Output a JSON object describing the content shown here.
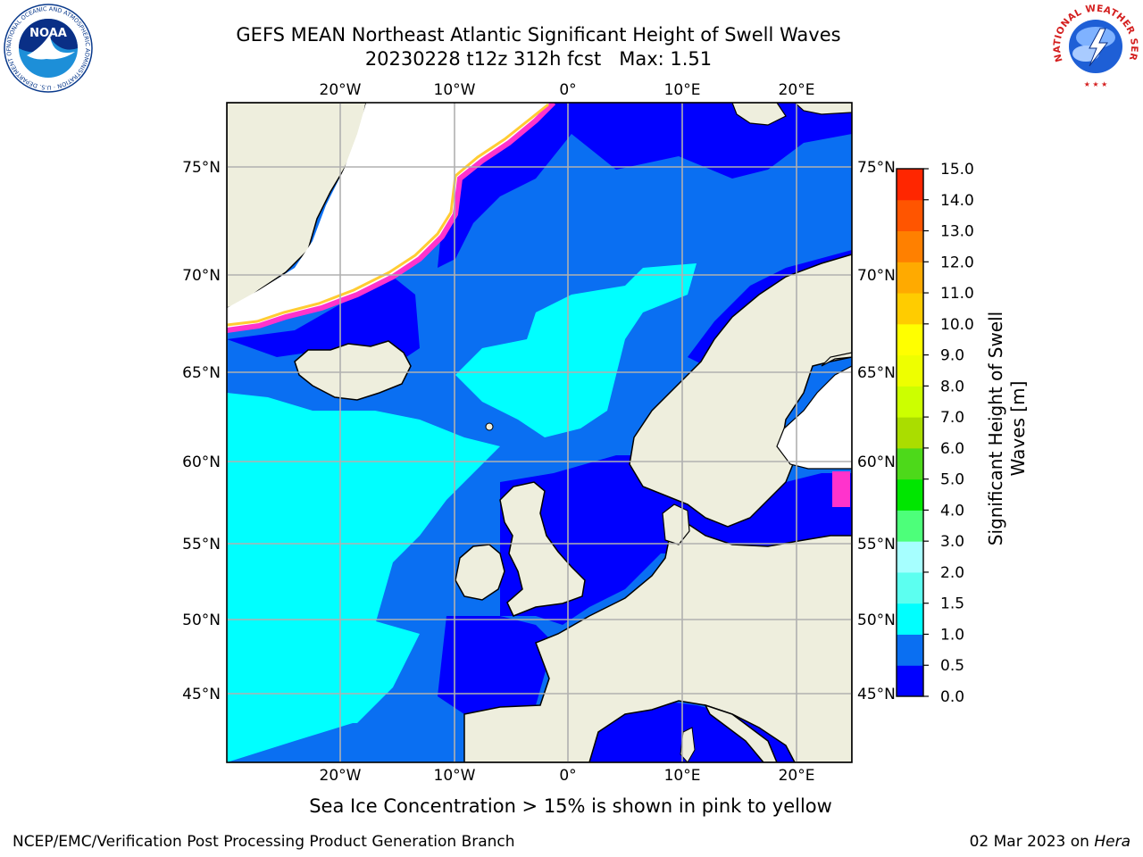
{
  "header": {
    "title_line1": "GEFS MEAN Northeast Atlantic Significant Height of Swell Waves",
    "title_line2": "20230228 t12z 312h fcst   Max: 1.51"
  },
  "logos": {
    "noaa_text": "NOAA",
    "noaa_ring_text": "NATIONAL OCEANIC AND ATMOSPHERIC ADMINISTRATION · U.S. DEPARTMENT OF COMMERCE",
    "nws_ring_text": "NATIONAL WEATHER SERVICE"
  },
  "map": {
    "lon_labels": [
      "20°W",
      "10°W",
      "0°",
      "10°E",
      "20°E"
    ],
    "lat_labels": [
      "75°N",
      "70°N",
      "65°N",
      "60°N",
      "55°N",
      "50°N",
      "45°N"
    ],
    "colors": {
      "land": "#eeeedd",
      "ice_free_white": "#ffffff",
      "coast": "#000000",
      "grid": "#b0b0b0"
    }
  },
  "colorbar": {
    "title": "Significant Height of Swell Waves [m]",
    "tick_labels": [
      "0.0",
      "0.5",
      "1.0",
      "1.5",
      "2.0",
      "3.0",
      "4.0",
      "5.0",
      "6.0",
      "7.0",
      "8.0",
      "9.0",
      "10.0",
      "11.0",
      "12.0",
      "13.0",
      "14.0",
      "15.0"
    ],
    "colors": [
      "#0000ff",
      "#0a6ff2",
      "#00ffff",
      "#5cfff0",
      "#a6ffff",
      "#4dff7a",
      "#00e600",
      "#4dd91a",
      "#aadd00",
      "#ccff00",
      "#eeff00",
      "#ffff00",
      "#ffcc00",
      "#ffaa00",
      "#ff8000",
      "#ff5500",
      "#ff2600",
      "#ff0000"
    ]
  },
  "footer": {
    "note": "Sea Ice Concentration > 15% is shown in pink to yellow",
    "credit_left": "NCEP/EMC/Verification Post Processing Product Generation Branch",
    "credit_date": "02 Mar 2023 on ",
    "credit_machine": "Hera"
  }
}
